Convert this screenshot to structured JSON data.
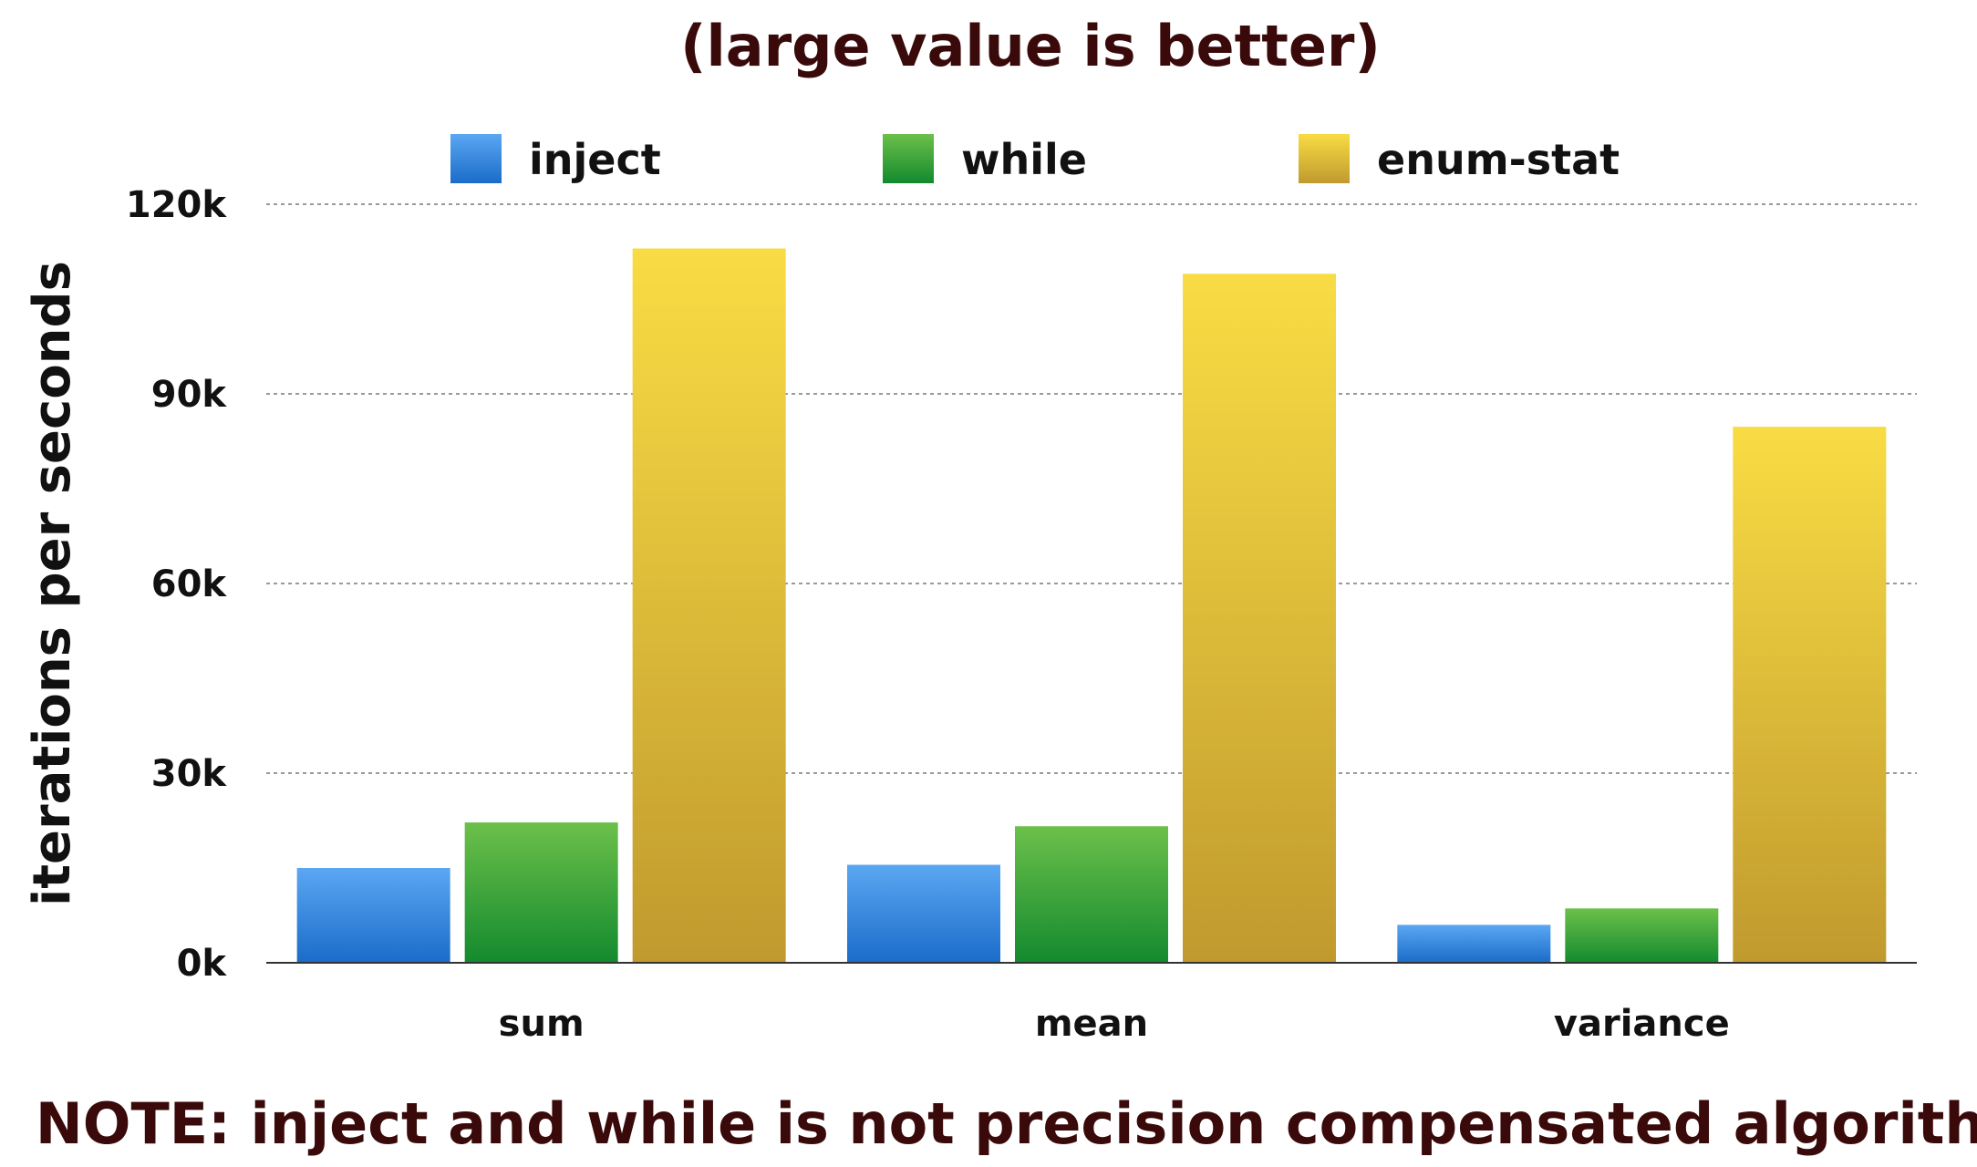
{
  "chart_data": {
    "type": "bar",
    "title": "(large value is better)",
    "note": "NOTE: inject and while is not precision compensated algorithm",
    "ylabel": "iterations per seconds",
    "xlabel": "",
    "categories": [
      "sum",
      "mean",
      "variance"
    ],
    "series": [
      {
        "name": "inject",
        "values": [
          15000,
          15500,
          6000
        ],
        "color_top": "#5ba7f2",
        "color_bottom": "#1a6cc9"
      },
      {
        "name": "while",
        "values": [
          22200,
          21600,
          8600
        ],
        "color_top": "#6cc04a",
        "color_bottom": "#138a2e"
      },
      {
        "name": "enum-stat",
        "values": [
          113000,
          109000,
          84800
        ],
        "color_top": "#f9dc44",
        "color_bottom": "#c09a2e"
      }
    ],
    "ylim": [
      0,
      120000
    ],
    "yticks": [
      {
        "value": 0,
        "label": "0k"
      },
      {
        "value": 30000,
        "label": "30k"
      },
      {
        "value": 60000,
        "label": "60k"
      },
      {
        "value": 90000,
        "label": "90k"
      },
      {
        "value": 120000,
        "label": "120k"
      }
    ],
    "grid": true,
    "legend_position": "top"
  }
}
